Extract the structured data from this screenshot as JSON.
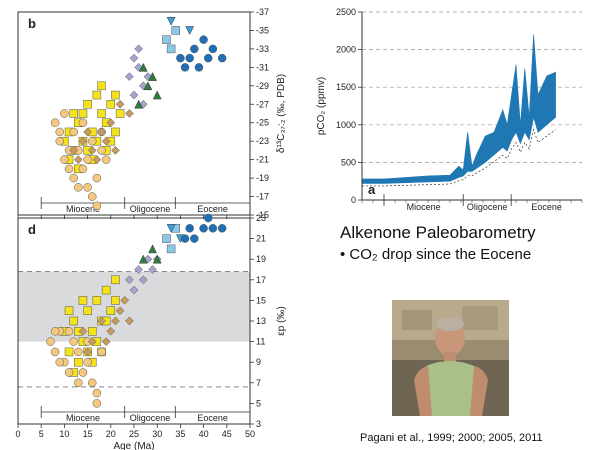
{
  "slide": {
    "title": "Alkenone Paleobarometry",
    "bullet": "• CO₂ drop since the Eocene",
    "citation": "Pagani et al., 1999; 2000;  2005, 2011"
  },
  "chart_data": [
    {
      "type": "scatter",
      "panel_label": "b",
      "ylabel": "δ¹³C₃₇:₂ (‰, PDB)",
      "xlim": [
        0,
        50
      ],
      "ylim": [
        -37,
        -15
      ],
      "y_reversed": true,
      "y_ticks": [
        -37,
        -35,
        -33,
        -31,
        -29,
        -27,
        -25,
        -23,
        -21,
        -19,
        -17,
        -15
      ],
      "epochs": [
        {
          "name": "Miocene",
          "from": 5,
          "to": 23
        },
        {
          "name": "Oligocene",
          "from": 23,
          "to": 33.9
        },
        {
          "name": "Eocene",
          "from": 33.9,
          "to": 50
        }
      ],
      "series": [
        {
          "marker": "square",
          "color": "#f4e31b",
          "points": [
            [
              10,
              -23
            ],
            [
              11,
              -24
            ],
            [
              12,
              -22
            ],
            [
              13,
              -25
            ],
            [
              14,
              -26
            ],
            [
              15,
              -27
            ],
            [
              16,
              -24
            ],
            [
              17,
              -28
            ],
            [
              18,
              -26
            ],
            [
              19,
              -25
            ],
            [
              20,
              -27
            ],
            [
              21,
              -28
            ],
            [
              11,
              -21
            ],
            [
              13,
              -20
            ],
            [
              15,
              -22
            ],
            [
              17,
              -23
            ],
            [
              19,
              -22
            ],
            [
              21,
              -24
            ],
            [
              22,
              -26
            ],
            [
              12,
              -26
            ],
            [
              16,
              -21
            ],
            [
              18,
              -29
            ],
            [
              20,
              -23
            ],
            [
              14,
              -23
            ]
          ]
        },
        {
          "marker": "circle",
          "color": "#f4c97f",
          "points": [
            [
              8,
              -25
            ],
            [
              9,
              -23
            ],
            [
              10,
              -21
            ],
            [
              11,
              -22
            ],
            [
              12,
              -19
            ],
            [
              13,
              -22
            ],
            [
              14,
              -20
            ],
            [
              15,
              -18
            ],
            [
              16,
              -17
            ],
            [
              17,
              -19
            ],
            [
              18,
              -22
            ],
            [
              19,
              -21
            ],
            [
              9,
              -24
            ],
            [
              10,
              -26
            ],
            [
              12,
              -24
            ],
            [
              14,
              -25
            ],
            [
              16,
              -23
            ],
            [
              17,
              -16
            ],
            [
              13,
              -18
            ],
            [
              11,
              -20
            ],
            [
              15,
              -21
            ],
            [
              18,
              -24
            ]
          ]
        },
        {
          "marker": "diamond",
          "color": "#c69a62",
          "points": [
            [
              12,
              -22
            ],
            [
              14,
              -23
            ],
            [
              16,
              -22
            ],
            [
              18,
              -24
            ],
            [
              20,
              -25
            ],
            [
              22,
              -27
            ],
            [
              24,
              -26
            ],
            [
              15,
              -24
            ],
            [
              17,
              -21
            ],
            [
              19,
              -23
            ],
            [
              21,
              -22
            ],
            [
              13,
              -21
            ]
          ]
        },
        {
          "marker": "diamond",
          "color": "#a7a3cf",
          "points": [
            [
              24,
              -30
            ],
            [
              25,
              -32
            ],
            [
              26,
              -31
            ],
            [
              27,
              -29
            ],
            [
              28,
              -30
            ],
            [
              25,
              -28
            ],
            [
              26,
              -33
            ],
            [
              27,
              -27
            ]
          ]
        },
        {
          "marker": "triangle",
          "color": "#2e7d3c",
          "points": [
            [
              27,
              -31
            ],
            [
              28,
              -29
            ],
            [
              29,
              -30
            ],
            [
              26,
              -27
            ],
            [
              30,
              -28
            ]
          ]
        },
        {
          "marker": "square",
          "color": "#8cc6e8",
          "points": [
            [
              32,
              -34
            ],
            [
              33,
              -33
            ],
            [
              34,
              -35
            ]
          ]
        },
        {
          "marker": "triangle-down",
          "color": "#3a9fd4",
          "points": [
            [
              33,
              -36
            ],
            [
              37,
              -35
            ]
          ]
        },
        {
          "marker": "circle",
          "color": "#1f6fb2",
          "points": [
            [
              35,
              -32
            ],
            [
              36,
              -31
            ],
            [
              37,
              -32
            ],
            [
              38,
              -33
            ],
            [
              39,
              -31
            ],
            [
              40,
              -34
            ],
            [
              41,
              -32
            ],
            [
              42,
              -33
            ],
            [
              44,
              -32
            ]
          ]
        }
      ]
    },
    {
      "type": "scatter",
      "panel_label": "d",
      "xlabel": "Age (Ma)",
      "ylabel": "εp (‰)",
      "xlim": [
        0,
        50
      ],
      "ylim": [
        3,
        23
      ],
      "y_ticks": [
        3,
        5,
        7,
        9,
        11,
        13,
        15,
        17,
        19,
        21,
        23
      ],
      "x_ticks": [
        0,
        5,
        10,
        15,
        20,
        25,
        30,
        35,
        40,
        45,
        50
      ],
      "shaded_band": [
        11,
        17.8
      ],
      "dashed_lines": [
        17.8,
        6.6
      ],
      "epochs": [
        {
          "name": "Miocene",
          "from": 5,
          "to": 23
        },
        {
          "name": "Oligocene",
          "from": 23,
          "to": 33.9
        },
        {
          "name": "Eocene",
          "from": 33.9,
          "to": 50
        }
      ],
      "series": [
        {
          "marker": "square",
          "color": "#f4e31b",
          "points": [
            [
              10,
              12
            ],
            [
              11,
              10
            ],
            [
              12,
              13
            ],
            [
              13,
              9
            ],
            [
              14,
              11
            ],
            [
              15,
              14
            ],
            [
              16,
              12
            ],
            [
              17,
              15
            ],
            [
              18,
              13
            ],
            [
              19,
              16
            ],
            [
              20,
              14
            ],
            [
              21,
              17
            ],
            [
              11,
              14
            ],
            [
              13,
              12
            ],
            [
              15,
              10
            ],
            [
              17,
              11
            ],
            [
              19,
              13
            ],
            [
              21,
              15
            ],
            [
              12,
              8
            ],
            [
              16,
              9
            ],
            [
              14,
              15
            ],
            [
              18,
              10
            ]
          ]
        },
        {
          "marker": "circle",
          "color": "#f4c97f",
          "points": [
            [
              7,
              11
            ],
            [
              8,
              10
            ],
            [
              9,
              12
            ],
            [
              10,
              9
            ],
            [
              11,
              8
            ],
            [
              12,
              11
            ],
            [
              13,
              10
            ],
            [
              14,
              8
            ],
            [
              15,
              9
            ],
            [
              16,
              7
            ],
            [
              17,
              5
            ],
            [
              18,
              10
            ],
            [
              9,
              9
            ],
            [
              11,
              12
            ],
            [
              13,
              7
            ],
            [
              15,
              11
            ],
            [
              17,
              6
            ],
            [
              8,
              12
            ]
          ]
        },
        {
          "marker": "diamond",
          "color": "#c69a62",
          "points": [
            [
              14,
              12
            ],
            [
              16,
              11
            ],
            [
              18,
              13
            ],
            [
              20,
              12
            ],
            [
              22,
              14
            ],
            [
              24,
              13
            ],
            [
              19,
              11
            ],
            [
              21,
              13
            ],
            [
              23,
              15
            ],
            [
              15,
              10
            ]
          ]
        },
        {
          "marker": "diamond",
          "color": "#a7a3cf",
          "points": [
            [
              24,
              17
            ],
            [
              25,
              16
            ],
            [
              26,
              18
            ],
            [
              27,
              17
            ],
            [
              28,
              19
            ],
            [
              29,
              18
            ],
            [
              30,
              19
            ]
          ]
        },
        {
          "marker": "triangle",
          "color": "#2e7d3c",
          "points": [
            [
              27,
              19
            ],
            [
              29,
              20
            ],
            [
              30,
              19
            ]
          ]
        },
        {
          "marker": "square",
          "color": "#8cc6e8",
          "points": [
            [
              32,
              21
            ],
            [
              33,
              20
            ],
            [
              34,
              22
            ]
          ]
        },
        {
          "marker": "triangle-down",
          "color": "#3a9fd4",
          "points": [
            [
              33,
              22
            ],
            [
              35,
              21
            ]
          ]
        },
        {
          "marker": "circle",
          "color": "#1f6fb2",
          "points": [
            [
              36,
              21
            ],
            [
              37,
              22
            ],
            [
              38,
              21
            ],
            [
              40,
              22
            ],
            [
              41,
              23
            ],
            [
              42,
              22
            ],
            [
              44,
              22
            ]
          ]
        }
      ]
    },
    {
      "type": "area",
      "panel_label": "a",
      "ylabel": "pCO₂ (ppmv)",
      "ylim": [
        0,
        2500
      ],
      "xlim": [
        0,
        50
      ],
      "y_ticks": [
        0,
        500,
        1000,
        1500,
        2000,
        2500
      ],
      "color": "#1f78b4",
      "epochs": [
        {
          "name": "Miocene",
          "from": 5,
          "to": 23
        },
        {
          "name": "Oligocene",
          "from": 23,
          "to": 33.9
        },
        {
          "name": "Eocene",
          "from": 33.9,
          "to": 50
        }
      ],
      "upper": [
        [
          0,
          280
        ],
        [
          5,
          280
        ],
        [
          10,
          300
        ],
        [
          15,
          320
        ],
        [
          20,
          330
        ],
        [
          22,
          450
        ],
        [
          23,
          400
        ],
        [
          24,
          900
        ],
        [
          25,
          450
        ],
        [
          26,
          600
        ],
        [
          28,
          850
        ],
        [
          30,
          900
        ],
        [
          32,
          1200
        ],
        [
          33,
          1000
        ],
        [
          34,
          1400
        ],
        [
          35,
          1800
        ],
        [
          36,
          1000
        ],
        [
          37,
          1750
        ],
        [
          38,
          1100
        ],
        [
          39,
          2200
        ],
        [
          40,
          1400
        ],
        [
          42,
          1650
        ],
        [
          44,
          1700
        ]
      ],
      "lower": [
        [
          0,
          220
        ],
        [
          5,
          220
        ],
        [
          10,
          230
        ],
        [
          15,
          240
        ],
        [
          20,
          250
        ],
        [
          22,
          300
        ],
        [
          23,
          320
        ],
        [
          24,
          380
        ],
        [
          25,
          380
        ],
        [
          26,
          420
        ],
        [
          28,
          500
        ],
        [
          30,
          600
        ],
        [
          32,
          700
        ],
        [
          33,
          650
        ],
        [
          34,
          800
        ],
        [
          35,
          900
        ],
        [
          36,
          750
        ],
        [
          37,
          900
        ],
        [
          38,
          800
        ],
        [
          39,
          1100
        ],
        [
          40,
          900
        ],
        [
          42,
          1000
        ],
        [
          44,
          1100
        ]
      ]
    }
  ]
}
